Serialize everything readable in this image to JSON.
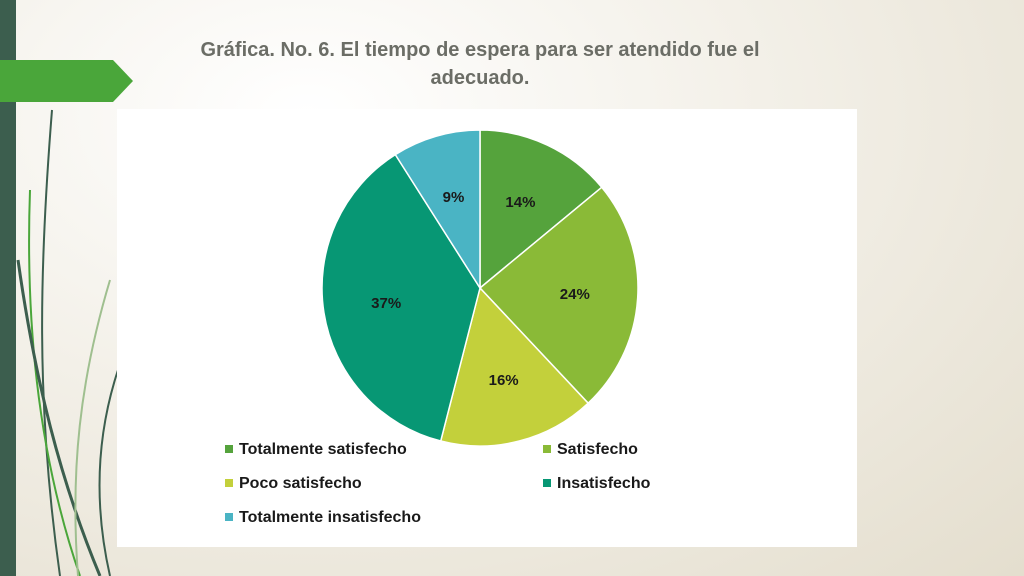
{
  "title": "Gráfica. No. 6. El tiempo de espera para ser atendido fue el adecuado.",
  "colors": {
    "sidebar": "#3c5e4e",
    "accent": "#4aa63a",
    "title": "#6b6d66"
  },
  "chart_data": {
    "type": "pie",
    "title": "",
    "categories": [
      "Totalmente satisfecho",
      "Satisfecho",
      "Poco satisfecho",
      "Insatisfecho",
      "Totalmente insatisfecho"
    ],
    "values": [
      14,
      24,
      16,
      37,
      9
    ],
    "labels": [
      "14%",
      "24%",
      "16%",
      "37%",
      "9%"
    ],
    "colors": [
      "#55a33c",
      "#8aba37",
      "#c3d03b",
      "#079774",
      "#4ab4c4"
    ],
    "legend_position": "bottom"
  }
}
